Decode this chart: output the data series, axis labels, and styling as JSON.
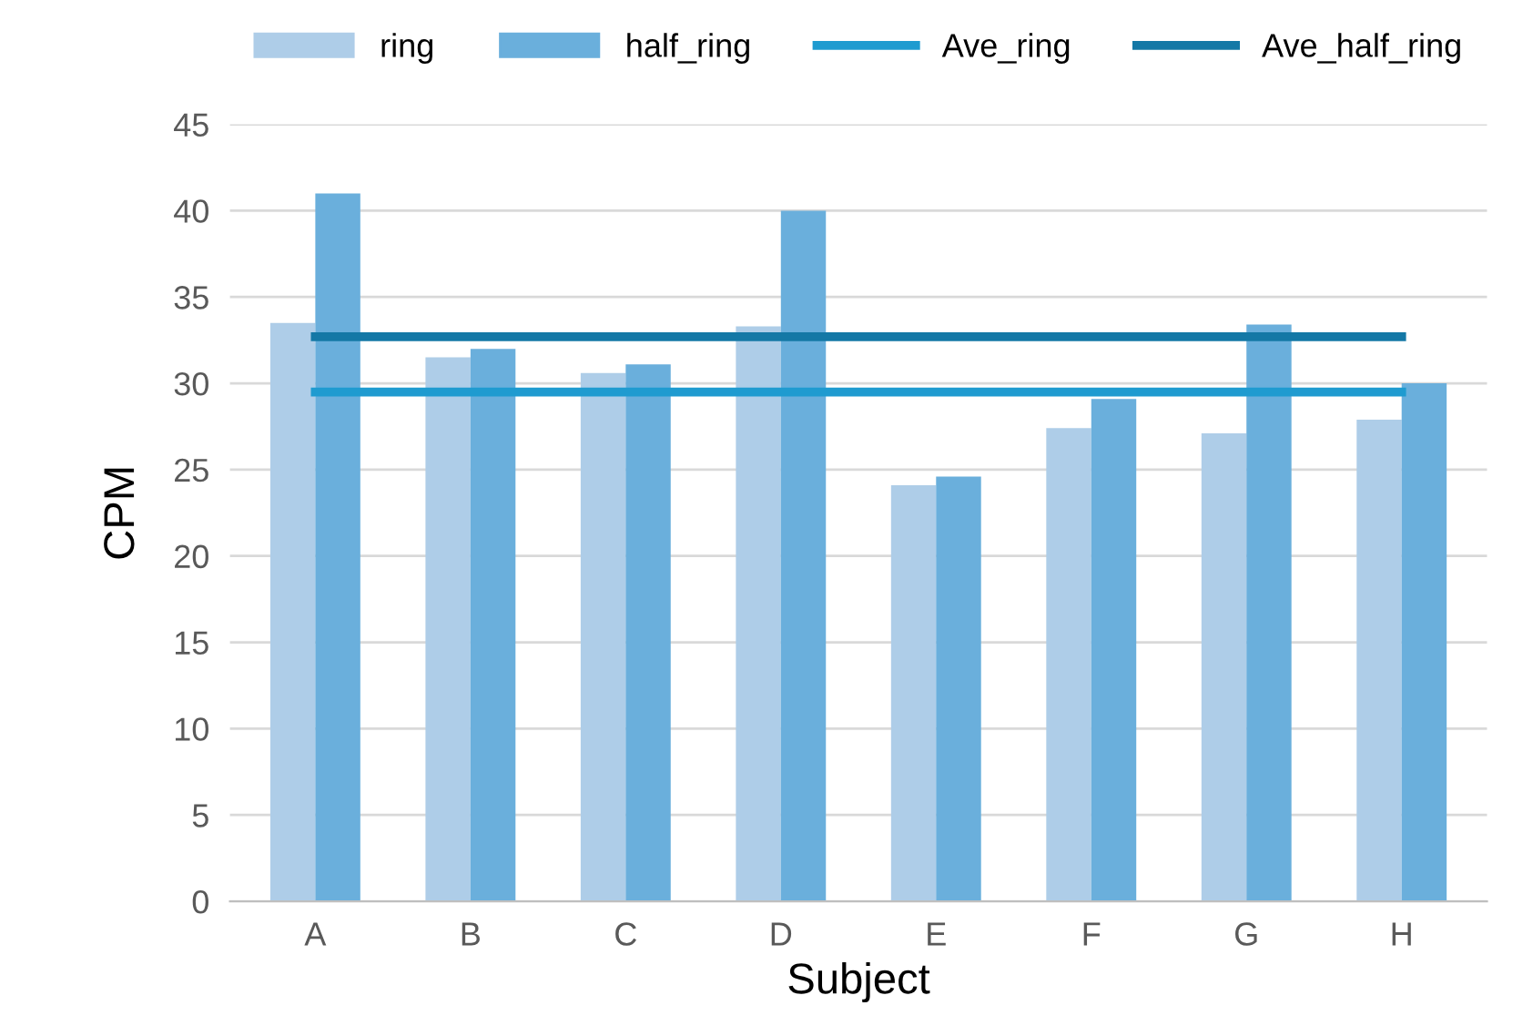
{
  "chart_data": {
    "type": "bar",
    "xlabel": "Subject",
    "ylabel": "CPM",
    "categories": [
      "A",
      "B",
      "C",
      "D",
      "E",
      "F",
      "G",
      "H"
    ],
    "series": [
      {
        "name": "ring",
        "color": "#aecde8",
        "values": [
          33.5,
          31.5,
          30.6,
          33.3,
          24.1,
          27.4,
          27.1,
          27.9
        ]
      },
      {
        "name": "half_ring",
        "color": "#6aafdc",
        "values": [
          41.0,
          32.0,
          31.1,
          40.0,
          24.6,
          29.1,
          33.4,
          30.0
        ]
      },
      {
        "name": "Ave_ring",
        "type": "line",
        "color": "#1f9bd0",
        "values": [
          29.5,
          29.5,
          29.5,
          29.5,
          29.5,
          29.5,
          29.5,
          29.5
        ]
      },
      {
        "name": "Ave_half_ring",
        "type": "line",
        "color": "#1478a6",
        "values": [
          32.7,
          32.7,
          32.7,
          32.7,
          32.7,
          32.7,
          32.7,
          32.7
        ]
      }
    ],
    "ylim": [
      0,
      45
    ],
    "yticks": [
      0,
      5,
      10,
      15,
      20,
      25,
      30,
      35,
      40,
      45
    ],
    "grid": "y",
    "legend": "top",
    "marker": "none",
    "line_style": "solid"
  }
}
